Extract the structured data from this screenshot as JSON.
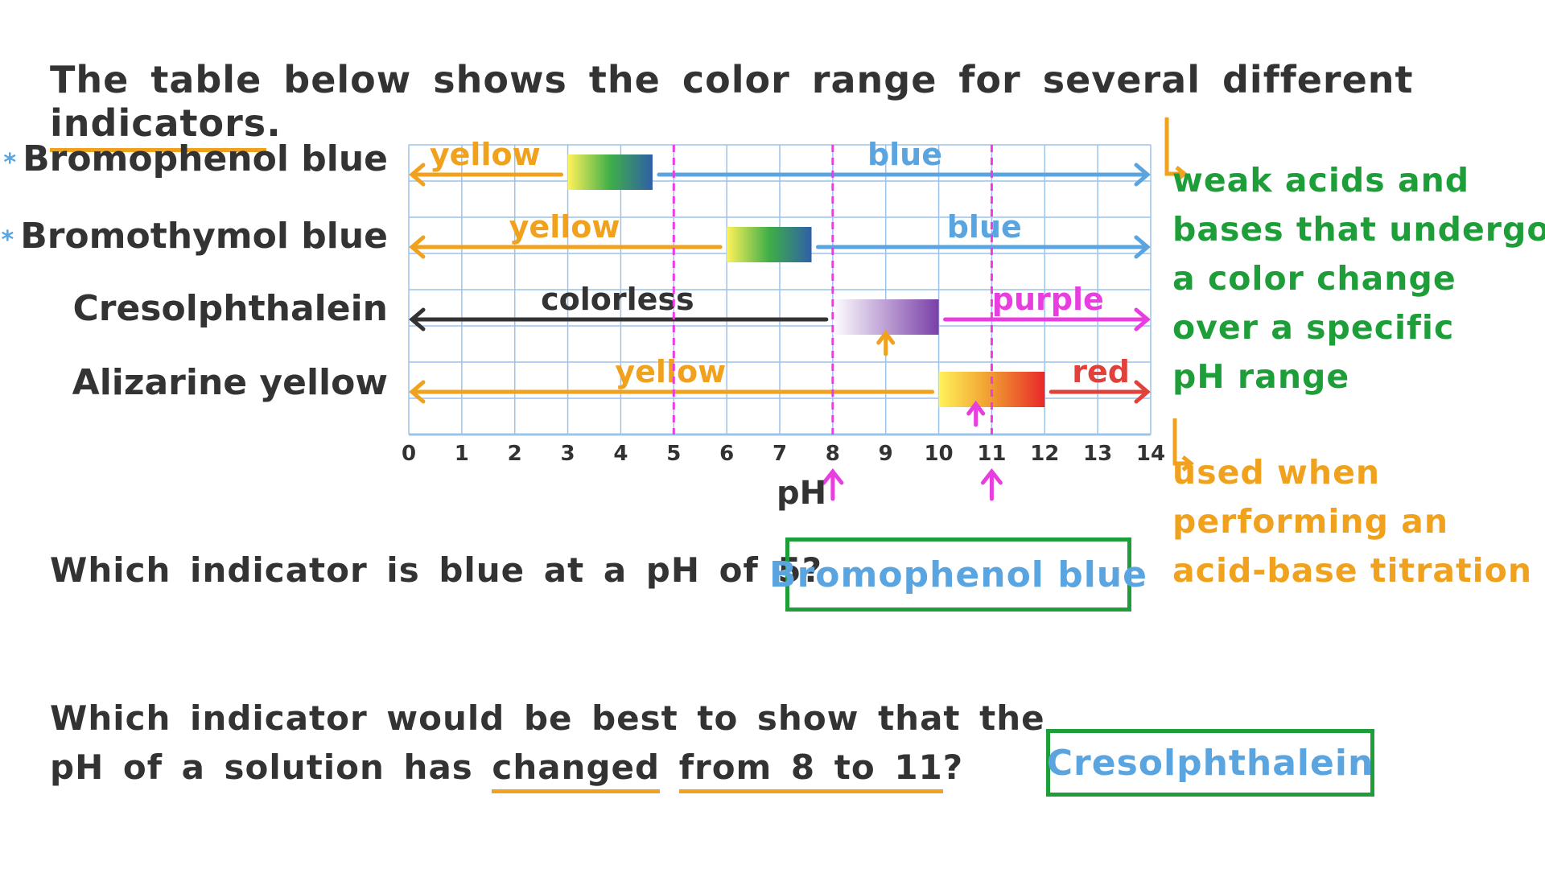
{
  "title": {
    "before": "The table below shows the color range for several different ",
    "underlined": "indicators",
    "after": "."
  },
  "indicators": [
    {
      "name": "Bromophenol blue",
      "starred": true
    },
    {
      "name": "Bromothymol blue",
      "starred": true
    },
    {
      "name": "Cresolphthalein",
      "starred": false
    },
    {
      "name": "Alizarine yellow",
      "starred": false
    }
  ],
  "star_glyph": "*",
  "axis": {
    "label": "pH",
    "ticks": [
      "0",
      "1",
      "2",
      "3",
      "4",
      "5",
      "6",
      "7",
      "8",
      "9",
      "10",
      "11",
      "12",
      "13",
      "14"
    ],
    "range": [
      0,
      14
    ]
  },
  "chart_data": {
    "type": "range",
    "series": [
      {
        "indicator": "Bromophenol blue",
        "low_color": "yellow",
        "low_color_hex": "#f0a21e",
        "high_color": "blue",
        "high_color_hex": "#5aa4e0",
        "transition": [
          3,
          4.6
        ],
        "gradient": [
          "#fff25a",
          "#3fae48",
          "#2f5fa8"
        ]
      },
      {
        "indicator": "Bromothymol blue",
        "low_color": "yellow",
        "low_color_hex": "#f0a21e",
        "high_color": "blue",
        "high_color_hex": "#5aa4e0",
        "transition": [
          6,
          7.6
        ],
        "gradient": [
          "#fff25a",
          "#3fae48",
          "#2f5fa8"
        ]
      },
      {
        "indicator": "Cresolphthalein",
        "low_color": "colorless",
        "low_color_hex": "#333333",
        "high_color": "purple",
        "high_color_hex": "#e83ee0",
        "transition": [
          8,
          10
        ],
        "gradient": [
          "#ffffff",
          "#7a3fa8"
        ]
      },
      {
        "indicator": "Alizarine yellow",
        "low_color": "yellow",
        "low_color_hex": "#f0a21e",
        "high_color": "red",
        "high_color_hex": "#e0413a",
        "transition": [
          10,
          12
        ],
        "gradient": [
          "#fff25a",
          "#f09a30",
          "#e8282a"
        ]
      }
    ],
    "dashed_lines_ph": [
      5,
      8,
      11
    ],
    "dashed_color": "#e83ee0",
    "pink_arrows_ph": [
      8,
      11
    ],
    "orange_arrows_ph": [
      9,
      10.7
    ]
  },
  "notes": {
    "green": [
      "weak acids and",
      "bases that undergo",
      "a color change",
      "over a specific",
      "pH range"
    ],
    "orange": [
      "used when",
      "performing an",
      "acid-base titration"
    ]
  },
  "questions": {
    "q1": "Which indicator is blue at a pH of 5?",
    "q1_answer": "Bromophenol blue",
    "q2_line1": "Which indicator would be best to show that the",
    "q2_line2_before": "pH of a solution has ",
    "q2_line2_ul1": "changed",
    "q2_line2_gap": " ",
    "q2_line2_ul2": "from 8 to 11",
    "q2_line2_after": "?",
    "q2_answer": "Cresolphthalein"
  },
  "colors": {
    "grid": "#9cc4ea",
    "green": "#1e9e39",
    "orange": "#f0a21e",
    "blue": "#5aa4e0",
    "pink": "#e83ee0"
  }
}
